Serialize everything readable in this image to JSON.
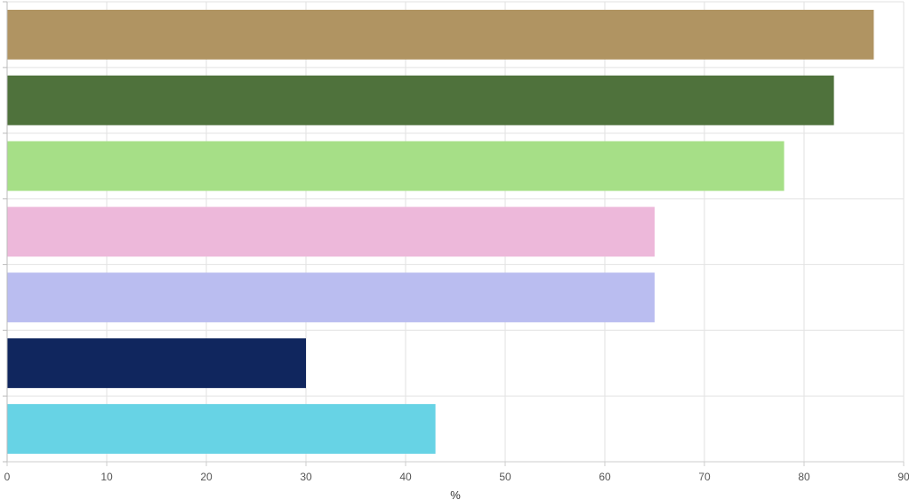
{
  "chart_data": {
    "type": "bar",
    "orientation": "horizontal",
    "xlabel": "%",
    "ylabel": "",
    "title": "",
    "xlim": [
      0,
      90
    ],
    "xticks": [
      0,
      10,
      20,
      30,
      40,
      50,
      60,
      70,
      80,
      90
    ],
    "grid": true,
    "legend": "none",
    "values": [
      87,
      83,
      78,
      65,
      65,
      30,
      43
    ],
    "colors": [
      "#b09462",
      "#4f723c",
      "#a6df87",
      "#edb8da",
      "#babdf0",
      "#10265e",
      "#67d3e5"
    ]
  }
}
